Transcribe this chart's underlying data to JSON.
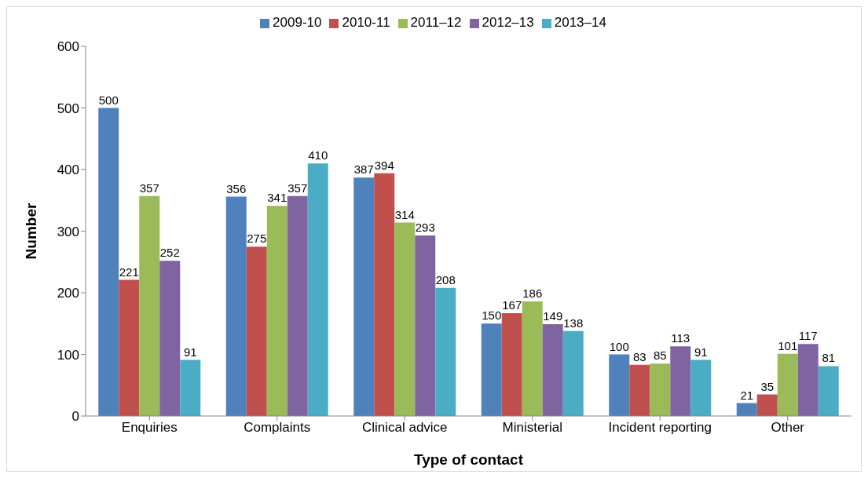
{
  "chart_data": {
    "type": "bar",
    "xlabel": "Type of contact",
    "ylabel": "Number",
    "categories": [
      "Enquiries",
      "Complaints",
      "Clinical advice",
      "Ministerial",
      "Incident reporting",
      "Other"
    ],
    "series": [
      {
        "name": "2009-10",
        "color": "#4f81bd",
        "values": [
          500,
          356,
          387,
          150,
          100,
          21
        ]
      },
      {
        "name": "2010-11",
        "color": "#c0504d",
        "values": [
          221,
          275,
          394,
          167,
          83,
          35
        ]
      },
      {
        "name": "2011–12",
        "color": "#9bbb59",
        "values": [
          357,
          341,
          314,
          186,
          85,
          101
        ]
      },
      {
        "name": "2012–13",
        "color": "#8064a2",
        "values": [
          252,
          357,
          293,
          149,
          113,
          117
        ]
      },
      {
        "name": "2013–14",
        "color": "#4bacc6",
        "values": [
          91,
          410,
          208,
          138,
          91,
          81
        ]
      }
    ],
    "ylim": [
      0,
      600
    ],
    "yticks": [
      0,
      100,
      200,
      300,
      400,
      500,
      600
    ],
    "grid": false,
    "legend": "top",
    "data_labels": true
  }
}
